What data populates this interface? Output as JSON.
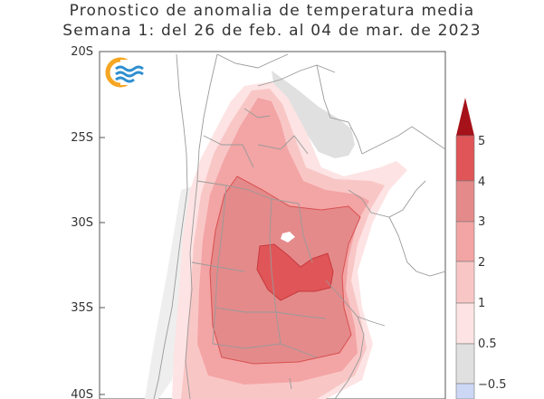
{
  "title": {
    "line1": "Pronostico de anomalia de temperatura media",
    "line2": "Semana 1: del 26 de feb. al 04 de mar. de 2023"
  },
  "map": {
    "lat_labels": [
      "20S",
      "25S",
      "30S",
      "35S",
      "40S"
    ],
    "logo": "smn-logo"
  },
  "colorbar": {
    "labels": [
      "5",
      "4",
      "3",
      "2",
      "1",
      "0.5",
      "−0.5"
    ],
    "colors": {
      "over_5": "#a5121a",
      "4_5": "#e05658",
      "3_4": "#e48a8a",
      "2_3": "#f3a4a4",
      "1_2": "#f9c6c6",
      "0_5_1": "#fde3e3",
      "neg0_5_0_5": "#e0e0e0",
      "below_neg0_5": "#ccd6f5"
    }
  }
}
